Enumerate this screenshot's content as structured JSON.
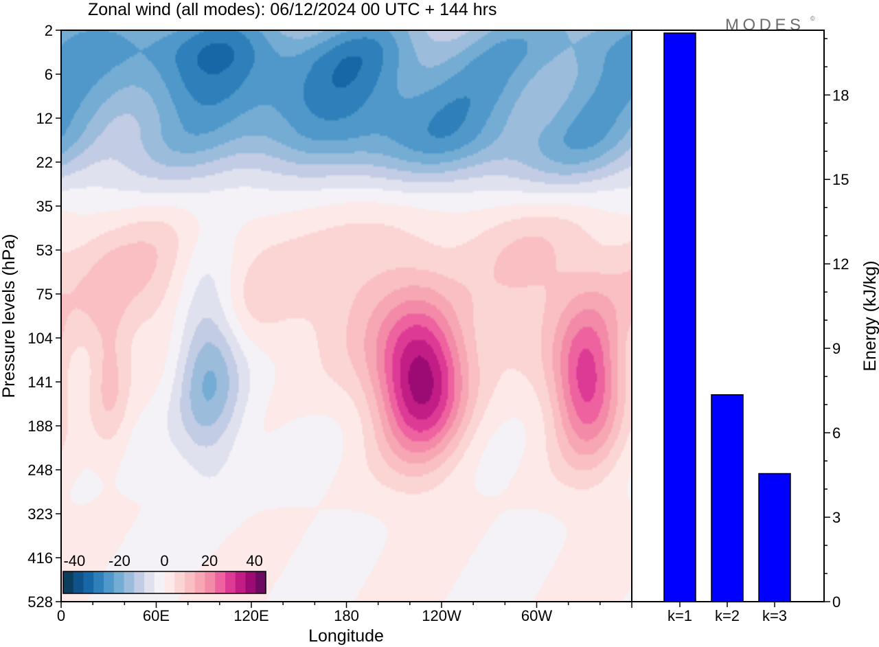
{
  "chart_data": [
    {
      "type": "heatmap",
      "title": "Zonal wind (all modes):  06/12/2024  00 UTC  + 144 hrs",
      "xlabel": "Longitude",
      "ylabel": "Pressure levels (hPa)",
      "x_ticks": [
        "0",
        "60E",
        "120E",
        "180",
        "120W",
        "60W"
      ],
      "x_tick_degrees": [
        0,
        60,
        120,
        180,
        240,
        300
      ],
      "xlim": [
        0,
        360
      ],
      "y_ticks": [
        "2",
        "6",
        "12",
        "22",
        "35",
        "53",
        "75",
        "104",
        "141",
        "188",
        "248",
        "323",
        "416",
        "528"
      ],
      "y_scale": "categorical pressure levels, top to bottom",
      "colorbar": {
        "labels": [
          "-40",
          "-20",
          "0",
          "20",
          "40"
        ],
        "label_values": [
          -40,
          -20,
          0,
          20,
          40
        ],
        "range": [
          -45,
          45
        ],
        "step": 5,
        "placement": "bottom-left",
        "colors": [
          "#0b3d5e",
          "#0f5289",
          "#1767a7",
          "#2f80ba",
          "#4f98c9",
          "#74acd4",
          "#9cbcdc",
          "#c2cce4",
          "#e0e1ee",
          "#f4f2f6",
          "#fde9e8",
          "#fbd4d4",
          "#f9bfc3",
          "#f7a6b3",
          "#f38aa8",
          "#ee629f",
          "#dd3a95",
          "#c11d85",
          "#9c0b74",
          "#6d0a62"
        ]
      },
      "features": [
        {
          "kind": "band",
          "lon": [
            0,
            360
          ],
          "pressure": [
            2,
            22
          ],
          "sign": "negative",
          "peak": -25
        },
        {
          "kind": "band",
          "lon": [
            0,
            360
          ],
          "pressure": [
            22,
            90
          ],
          "sign": "positive",
          "peak": 8
        },
        {
          "kind": "core",
          "lon": [
            205,
            250
          ],
          "pressure": [
            104,
            188
          ],
          "sign": "positive",
          "peak": 38
        },
        {
          "kind": "core",
          "lon": [
            315,
            350
          ],
          "pressure": [
            104,
            188
          ],
          "sign": "positive",
          "peak": 28
        },
        {
          "kind": "core",
          "lon": [
            75,
            110
          ],
          "pressure": [
            75,
            188
          ],
          "sign": "negative",
          "peak": -22
        },
        {
          "kind": "core",
          "lon": [
            20,
            40
          ],
          "pressure": [
            104,
            188
          ],
          "sign": "positive",
          "peak": 10
        }
      ]
    },
    {
      "type": "bar",
      "categories": [
        "k=1",
        "k=2",
        "k=3"
      ],
      "values": [
        20.2,
        7.35,
        4.55
      ],
      "ylabel": "Energy (kJ/kg)",
      "ylim": [
        0,
        20.3
      ],
      "y_ticks": [
        0,
        3,
        6,
        9,
        12,
        15,
        18
      ],
      "bar_color": "#0000ff"
    }
  ],
  "brand": {
    "text": "MODES",
    "mark": "©",
    "color": "#6e6e6e"
  }
}
